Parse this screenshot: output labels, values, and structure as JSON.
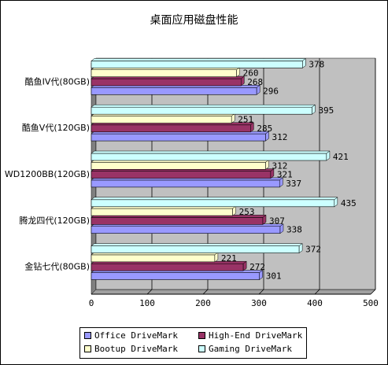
{
  "chart_data": {
    "type": "bar",
    "orientation": "horizontal",
    "title": "桌面应用磁盘性能",
    "categories": [
      "酷鱼IV代(80GB)",
      "酷鱼V代(120GB)",
      "WD1200BB(120GB)",
      "腾龙四代(120GB)",
      "金钻七代(80GB)"
    ],
    "series": [
      {
        "name": "Office DriveMark",
        "color": "#9999ff",
        "values": [
          296,
          312,
          337,
          338,
          301
        ]
      },
      {
        "name": "High-End DriveMark",
        "color": "#993366",
        "values": [
          268,
          285,
          321,
          307,
          272
        ]
      },
      {
        "name": "Bootup DriveMark",
        "color": "#ffffcc",
        "values": [
          260,
          251,
          312,
          253,
          221
        ]
      },
      {
        "name": "Gaming DriveMark",
        "color": "#ccffff",
        "values": [
          378,
          395,
          421,
          435,
          372
        ]
      }
    ],
    "xlim": [
      0,
      500
    ],
    "xticks": [
      0,
      100,
      200,
      300,
      400,
      500
    ],
    "grid": true,
    "plot_background": "#c0c0c0",
    "legend_position": "bottom"
  }
}
